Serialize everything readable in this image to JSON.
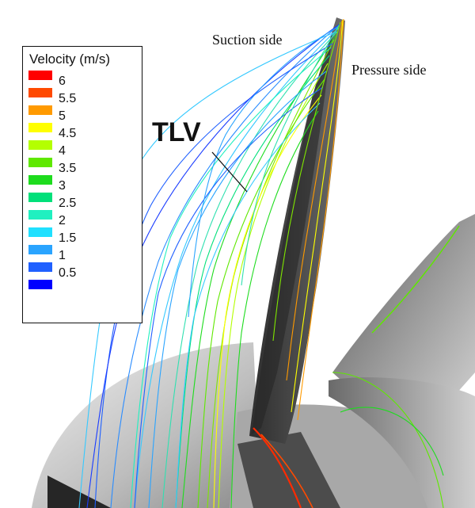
{
  "legend": {
    "title": "Velocity (m/s)",
    "ticks": [
      "6",
      "5.5",
      "5",
      "4.5",
      "4",
      "3.5",
      "3",
      "2.5",
      "2",
      "1.5",
      "1",
      "0.5"
    ],
    "colors": [
      "#ff0000",
      "#ff4a00",
      "#ff9a00",
      "#ffff00",
      "#b4ff00",
      "#5fe800",
      "#1edc1e",
      "#00e07a",
      "#20f0c0",
      "#20e0ff",
      "#2aa4ff",
      "#2060ff",
      "#0000ff"
    ]
  },
  "labels": {
    "suction": "Suction side",
    "pressure": "Pressure side",
    "tlv": "TLV"
  },
  "colors": {
    "blade_dark": "#3c3c3c",
    "blade_mid": "#6a6a6a",
    "hub_light": "#d6d6d6"
  }
}
